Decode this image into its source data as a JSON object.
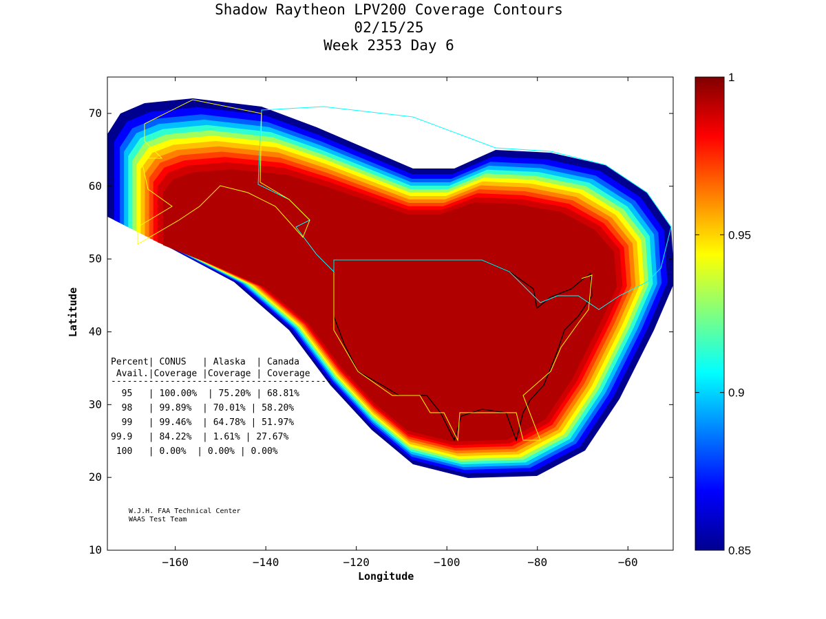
{
  "title": {
    "line1": "Shadow Raytheon LPV200 Coverage Contours",
    "line2": "02/15/25",
    "line3": "Week 2353 Day 6"
  },
  "chart_data": {
    "type": "heatmap",
    "description_kind": "contour map",
    "xlabel": "Longitude",
    "ylabel": "Latitude",
    "xlim": [
      -175,
      -50
    ],
    "ylim": [
      10,
      75
    ],
    "xticks": [
      -160,
      -140,
      -120,
      -100,
      -80,
      -60
    ],
    "yticks": [
      10,
      20,
      30,
      40,
      50,
      60,
      70
    ],
    "colorbar": {
      "range": [
        0.85,
        1
      ],
      "ticks": [
        0.85,
        0.9,
        0.95,
        1
      ],
      "colormap": "jet"
    }
  },
  "table": {
    "header1": "Percent| CONUS   | Alaska  | Canada",
    "header2": " Avail.|Coverage |Coverage | Coverage",
    "divider": "-----------------------------------------",
    "rows": [
      "  95   | 100.00%  | 75.20% | 68.81%",
      "  98   | 99.89%  | 70.01% | 58.20%",
      "  99   | 99.46%  | 64.78% | 51.97%",
      "99.9   | 84.22%  | 1.61% | 27.67%",
      " 100   | 0.00%  | 0.00% | 0.00%"
    ]
  },
  "credit": {
    "line1": "W.J.H. FAA Technical Center",
    "line2": "WAAS Test Team"
  }
}
